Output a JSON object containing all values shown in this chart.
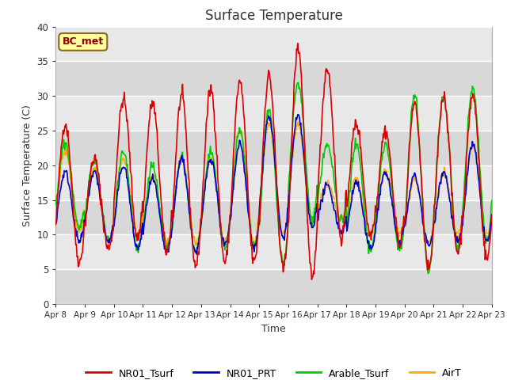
{
  "title": "Surface Temperature",
  "ylabel": "Surface Temperature (C)",
  "xlabel": "Time",
  "annotation": "BC_met",
  "ylim": [
    0,
    40
  ],
  "fig_bg_color": "#ffffff",
  "plot_bg_color": "#e8e8e8",
  "band_colors": [
    "#d8d8d8",
    "#e8e8e8"
  ],
  "grid_color": "#ffffff",
  "series": {
    "NR01_Tsurf": {
      "color": "#dd0000",
      "lw": 1.2
    },
    "NR01_PRT": {
      "color": "#0000cc",
      "lw": 1.2
    },
    "Arable_Tsurf": {
      "color": "#00cc00",
      "lw": 1.2
    },
    "AirT": {
      "color": "#ffaa00",
      "lw": 1.2
    }
  },
  "tick_labels": [
    "Apr 8",
    "Apr 9",
    "Apr 10",
    "Apr 11",
    "Apr 12",
    "Apr 13",
    "Apr 14",
    "Apr 15",
    "Apr 16",
    "Apr 17",
    "Apr 18",
    "Apr 19",
    "Apr 20",
    "Apr 21",
    "Apr 22",
    "Apr 23"
  ],
  "yticks": [
    0,
    5,
    10,
    15,
    20,
    25,
    30,
    35,
    40
  ],
  "n_days": 15,
  "pts_per_day": 48,
  "nr01_peaks": [
    26,
    21,
    29.5,
    29,
    30,
    31,
    32,
    33,
    37,
    34,
    26,
    25,
    29,
    30,
    30
  ],
  "nr01_troughs": [
    6,
    8,
    9.5,
    7.5,
    5.5,
    6,
    6,
    5,
    3.5,
    9.5,
    10,
    9,
    5,
    7.5,
    6.5
  ],
  "nrt_peaks": [
    19,
    19,
    20,
    18,
    21,
    21,
    23,
    27,
    27,
    17,
    17.5,
    19,
    18.5,
    19,
    23
  ],
  "nrt_troughs": [
    9,
    9,
    8,
    7.5,
    7.5,
    8.5,
    8,
    9.5,
    11,
    10.5,
    8,
    9,
    8.5,
    9,
    9
  ],
  "ara_peaks": [
    23,
    20.5,
    22,
    20,
    21,
    22,
    25,
    28,
    32,
    23,
    23,
    23,
    30,
    30,
    31
  ],
  "ara_troughs": [
    11,
    9,
    8,
    8,
    7.5,
    8,
    8,
    6,
    12,
    12,
    7.5,
    8,
    4.8,
    8,
    9
  ],
  "air_peaks": [
    22,
    19.5,
    21,
    18.5,
    21,
    21,
    25,
    26,
    26,
    17.5,
    18,
    19,
    18,
    19,
    23
  ],
  "air_troughs": [
    10.5,
    9,
    10,
    9,
    9,
    9,
    9,
    10,
    12,
    12,
    10,
    10,
    9,
    10,
    10
  ]
}
